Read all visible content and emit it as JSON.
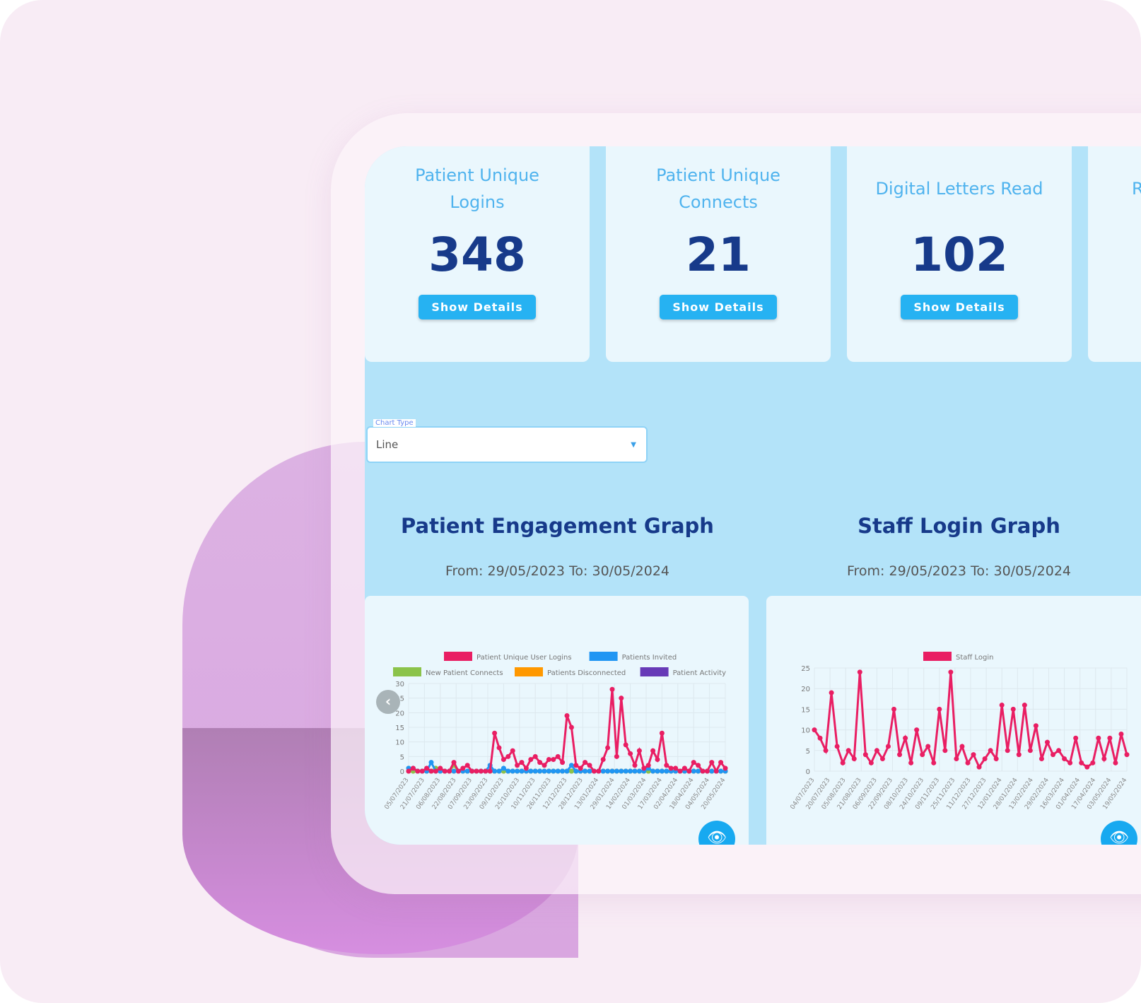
{
  "cards": [
    {
      "title": "Patient Unique Logins",
      "value": "348",
      "button": "Show Details"
    },
    {
      "title": "Patient Unique Connects",
      "value": "21",
      "button": "Show Details"
    },
    {
      "title": "Digital Letters Read",
      "value": "102",
      "button": "Show Details"
    },
    {
      "title": "R",
      "value": "",
      "button": ""
    }
  ],
  "chart_type": {
    "label": "Chart Type",
    "value": "Line"
  },
  "graphs": [
    {
      "title": "Patient Engagement Graph",
      "range": "From: 29/05/2023 To: 30/05/2024"
    },
    {
      "title": "Staff Login Graph",
      "range": "From: 29/05/2023 To: 30/05/2024"
    }
  ],
  "chart_data": [
    {
      "type": "line",
      "title": "Patient Engagement Graph",
      "ylim": [
        0,
        30
      ],
      "yticks": [
        0,
        5,
        10,
        15,
        20,
        25,
        30
      ],
      "xticks": [
        "05/07/2023",
        "21/07/2023",
        "06/08/2023",
        "22/08/2023",
        "07/09/2023",
        "23/09/2023",
        "09/10/2023",
        "25/10/2023",
        "10/11/2023",
        "26/11/2023",
        "12/12/2023",
        "28/12/2023",
        "13/01/2024",
        "29/01/2024",
        "14/02/2024",
        "01/03/2024",
        "17/03/2024",
        "02/04/2024",
        "18/04/2024",
        "04/05/2024",
        "20/05/2024"
      ],
      "series": [
        {
          "name": "Patient Unique User Logins",
          "color": "#e91e63",
          "values": [
            0,
            1,
            0,
            0,
            1,
            0,
            0,
            1,
            0,
            0,
            3,
            0,
            1,
            2,
            0,
            0,
            0,
            0,
            0,
            13,
            8,
            4,
            5,
            7,
            2,
            3,
            1,
            4,
            5,
            3,
            2,
            4,
            4,
            5,
            3,
            19,
            15,
            2,
            1,
            3,
            2,
            0,
            0,
            4,
            8,
            28,
            5,
            25,
            9,
            6,
            2,
            7,
            1,
            2,
            7,
            4,
            13,
            2,
            1,
            1,
            0,
            1,
            0,
            3,
            2,
            0,
            0,
            3,
            0,
            3,
            1
          ]
        },
        {
          "name": "Patients Invited",
          "color": "#2196f3",
          "values": [
            1,
            1,
            0,
            0,
            0,
            3,
            0,
            0,
            0,
            0,
            0,
            0,
            0,
            0,
            0,
            0,
            0,
            0,
            2,
            0,
            0,
            1,
            0,
            0,
            0,
            0,
            0,
            0,
            0,
            0,
            0,
            0,
            0,
            0,
            0,
            0,
            2,
            0,
            0,
            0,
            0,
            0,
            0,
            0,
            0,
            0,
            0,
            0,
            0,
            0,
            0,
            0,
            0,
            1,
            0,
            0,
            0,
            0,
            0,
            0,
            0,
            0,
            0,
            0,
            0,
            0,
            0,
            0,
            0,
            0,
            0
          ]
        },
        {
          "name": "New Patient Connects",
          "color": "#8bc34a",
          "values": [
            1,
            0,
            0,
            0,
            0,
            0,
            1,
            0,
            0,
            0,
            2,
            0,
            0,
            0,
            0,
            0,
            0,
            0,
            0,
            0,
            0,
            0,
            0,
            0,
            0,
            0,
            0,
            0,
            0,
            0,
            0,
            0,
            0,
            0,
            0,
            0,
            0,
            0,
            0,
            0,
            0,
            0,
            0,
            0,
            0,
            0,
            0,
            0,
            0,
            0,
            0,
            0,
            0,
            0,
            0,
            0,
            0,
            0,
            0,
            0,
            0,
            0,
            0,
            0,
            0,
            0,
            0,
            0,
            0,
            0,
            0
          ]
        },
        {
          "name": "Patients Disconnected",
          "color": "#ff9800",
          "values": [
            0,
            0,
            0,
            0,
            0,
            0,
            0,
            0,
            0,
            0,
            0,
            0,
            0,
            0,
            0,
            0,
            0,
            0,
            0,
            0,
            0,
            0,
            0,
            0,
            0,
            0,
            0,
            0,
            0,
            0,
            0,
            0,
            0,
            0,
            0,
            0,
            0,
            0,
            0,
            0,
            0,
            0,
            0,
            0,
            0,
            0,
            0,
            0,
            0,
            0,
            0,
            0,
            0,
            0,
            0,
            0,
            0,
            0,
            0,
            0,
            0,
            0,
            0,
            0,
            0,
            0,
            0,
            0,
            0,
            0,
            0
          ]
        },
        {
          "name": "Patient Activity",
          "color": "#673ab7",
          "values": [
            0,
            0,
            0,
            0,
            0,
            0,
            0,
            0,
            0,
            0,
            0,
            0,
            0,
            0,
            0,
            0,
            0,
            0,
            0,
            0,
            0,
            0,
            0,
            0,
            0,
            0,
            0,
            0,
            0,
            0,
            0,
            0,
            0,
            0,
            0,
            0,
            0,
            0,
            0,
            0,
            0,
            0,
            0,
            0,
            0,
            0,
            0,
            0,
            0,
            0,
            0,
            0,
            0,
            0,
            0,
            0,
            0,
            0,
            0,
            0,
            0,
            0,
            0,
            0,
            0,
            0,
            0,
            0,
            0,
            0,
            0
          ]
        }
      ]
    },
    {
      "type": "line",
      "title": "Staff Login Graph",
      "ylim": [
        0,
        25
      ],
      "yticks": [
        0,
        5,
        10,
        15,
        20,
        25
      ],
      "xticks": [
        "04/07/2023",
        "20/07/2023",
        "05/08/2023",
        "21/08/2023",
        "06/09/2023",
        "22/09/2023",
        "08/10/2023",
        "24/10/2023",
        "09/11/2023",
        "25/11/2023",
        "11/12/2023",
        "27/12/2023",
        "12/01/2024",
        "28/01/2024",
        "13/02/2024",
        "29/02/2024",
        "16/03/2024",
        "01/04/2024",
        "17/04/2024",
        "03/05/2024",
        "19/05/2024"
      ],
      "series": [
        {
          "name": "Staff Login",
          "color": "#e91e63",
          "values": [
            10,
            8,
            5,
            19,
            6,
            2,
            5,
            3,
            24,
            4,
            2,
            5,
            3,
            6,
            15,
            4,
            8,
            2,
            10,
            4,
            6,
            2,
            15,
            5,
            24,
            3,
            6,
            2,
            4,
            1,
            3,
            5,
            3,
            16,
            5,
            15,
            4,
            16,
            5,
            11,
            3,
            7,
            4,
            5,
            3,
            2,
            8,
            2,
            1,
            2,
            8,
            3,
            8,
            2,
            9,
            4
          ]
        }
      ]
    }
  ]
}
